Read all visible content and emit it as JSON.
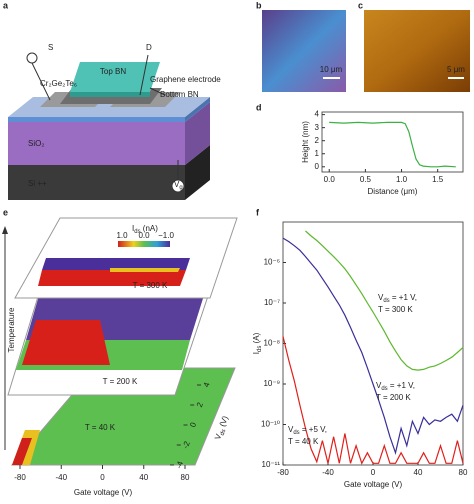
{
  "panel_labels": [
    "a",
    "b",
    "c",
    "d",
    "e",
    "f"
  ],
  "schematic": {
    "source": "S",
    "drain": "D",
    "top_bn": "Top BN",
    "cgt": "Cr₂Ge₂Te₆",
    "graphene": "Graphene electrode",
    "bottom_bn": "Bottom BN",
    "sio2": "SiO₂",
    "si": "Si ++",
    "gate": "V",
    "gate_sub": "g"
  },
  "images": {
    "b_scale": "10 μm",
    "c_scale": "5 μm"
  },
  "map3d": {
    "colorbar_title": [
      "I",
      "ds",
      " (nA)"
    ],
    "colorbar_ticks": [
      "1.0",
      "0.0",
      "−1.0"
    ],
    "planes": [
      "T = 300 K",
      "T = 200 K",
      "T = 40 K"
    ],
    "z_label": "Temperature",
    "x_label": "Gate voltage (V)",
    "x_ticks": [
      -80,
      -40,
      0,
      40,
      80
    ],
    "y_label": [
      "V",
      "ds",
      " (V)"
    ],
    "y_ticks": [
      4,
      2,
      0,
      -2,
      -4
    ]
  },
  "chart_data": [
    {
      "type": "line",
      "x_label": "Distance (μm)",
      "y_label": "Height (nm)",
      "xlim": [
        -0.1,
        1.85
      ],
      "ylim": [
        -0.4,
        4.2
      ],
      "xticks": [
        {
          "value": 0,
          "label": "0.0"
        },
        {
          "value": 0.5,
          "label": "0.5"
        },
        {
          "value": 1,
          "label": "1.0"
        },
        {
          "value": 1.5,
          "label": "1.5"
        }
      ],
      "yticks": [
        0,
        1,
        2,
        3,
        4
      ],
      "log": false,
      "x": [
        0,
        0.2,
        0.4,
        0.6,
        0.8,
        1.0,
        1.05,
        1.1,
        1.15,
        1.2,
        1.25,
        1.3,
        1.4,
        1.5,
        1.6,
        1.75
      ],
      "series": [
        {
          "color": "#3cb043",
          "values": [
            3.4,
            3.35,
            3.4,
            3.35,
            3.4,
            3.4,
            3.3,
            2.7,
            1.6,
            0.6,
            0.15,
            0.05,
            0.0,
            0.0,
            0.05,
            0.0
          ]
        }
      ]
    },
    {
      "type": "line",
      "x_label": "Gate voltage (V)",
      "y_label": [
        "I",
        "ds",
        " (A)"
      ],
      "xlim": [
        -80,
        80
      ],
      "ylim": [
        1e-11,
        1e-05
      ],
      "log": true,
      "xticks": [
        -80,
        -40,
        0,
        40,
        80
      ],
      "yticks": [
        {
          "value": 1e-11,
          "label": "10⁻¹¹"
        },
        {
          "value": 1e-10,
          "label": "10⁻¹⁰"
        },
        {
          "value": 1e-09,
          "label": "10⁻⁹"
        },
        {
          "value": 1e-08,
          "label": "10⁻⁸"
        },
        {
          "value": 1e-07,
          "label": "10⁻⁷"
        },
        {
          "value": 1e-06,
          "label": "10⁻⁶"
        }
      ],
      "x": [
        -80,
        -75,
        -70,
        -65,
        -60,
        -55,
        -50,
        -45,
        -40,
        -35,
        -30,
        -25,
        -20,
        -15,
        -10,
        -5,
        0,
        5,
        10,
        15,
        20,
        25,
        30,
        35,
        40,
        45,
        50,
        55,
        60,
        65,
        70,
        75,
        80
      ],
      "series": [
        {
          "color": "#5cb82e",
          "annotation": [
            "V",
            "ds",
            " = +1 V,",
            "T = 300 K"
          ],
          "values": [
            null,
            null,
            null,
            null,
            6e-06,
            4.5e-06,
            3.5e-06,
            2.6e-06,
            1.9e-06,
            1.4e-06,
            1e-06,
            7e-07,
            4.5e-07,
            2.8e-07,
            1.7e-07,
            1e-07,
            6e-08,
            3.5e-08,
            2e-08,
            1.1e-08,
            6.5e-09,
            4e-09,
            2.8e-09,
            2.3e-09,
            2.2e-09,
            2.3e-09,
            2.6e-09,
            2.8e-09,
            3.2e-09,
            3.8e-09,
            4.6e-09,
            6e-09,
            8e-09
          ]
        },
        {
          "color": "#3a2f9a",
          "annotation": [
            "V",
            "ds",
            " = +1 V,",
            "T = 200 K"
          ],
          "values": [
            4e-06,
            3.3e-06,
            2.6e-06,
            2e-06,
            1.4e-06,
            9.5e-07,
            6.5e-07,
            4e-07,
            2.5e-07,
            1.5e-07,
            9e-08,
            5e-08,
            2.5e-08,
            1.2e-08,
            6e-09,
            2.5e-09,
            1e-09,
            4e-10,
            1.5e-10,
            5e-11,
            2e-11,
            8e-11,
            3e-11,
            1.2e-10,
            6e-11,
            1.5e-10,
            1e-10,
            1.3e-10,
            1.2e-10,
            1.5e-10,
            1.8e-10,
            1.2e-10,
            3e-10
          ]
        },
        {
          "color": "#e0201b",
          "annotation": [
            "V",
            "ds",
            " = +5 V,",
            "T = 40 K"
          ],
          "values": [
            1.5e-08,
            4e-09,
            1.2e-09,
            3e-10,
            8e-11,
            2.5e-11,
            1.2e-11,
            4e-11,
            1.1e-11,
            5e-11,
            1.1e-11,
            6e-11,
            1.1e-11,
            3e-11,
            1.1e-11,
            2e-11,
            1.1e-11,
            1.1e-11,
            3e-11,
            1.1e-11,
            1.1e-11,
            2e-11,
            1.1e-11,
            1.1e-11,
            1.1e-11,
            2e-11,
            1.1e-11,
            1.1e-11,
            3e-11,
            1.1e-11,
            1.1e-11,
            4e-11,
            1.1e-11
          ]
        }
      ]
    }
  ]
}
